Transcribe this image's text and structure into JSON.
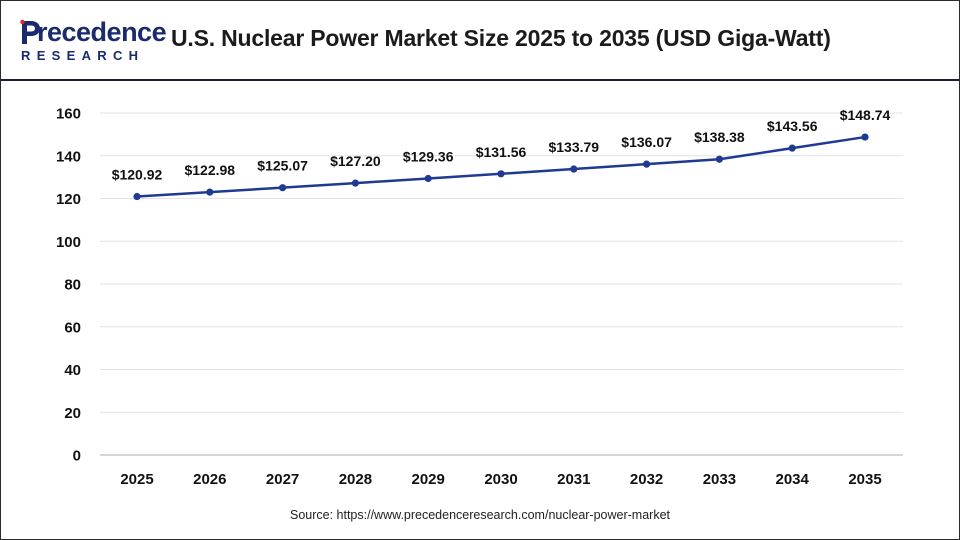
{
  "header": {
    "logo_top": "recedence",
    "logo_bottom": "RESEARCH",
    "title": "U.S. Nuclear Power Market Size 2025 to 2035 (USD Giga-Watt)"
  },
  "source": "Source: https://www.precedenceresearch.com/nuclear-power-market",
  "colors": {
    "brand": "#1a2b6d",
    "line": "#1f3a93",
    "grid": "#e3e3e3"
  },
  "chart_data": {
    "type": "line",
    "title": "U.S. Nuclear Power Market Size 2025 to 2035 (USD Giga-Watt)",
    "xlabel": "",
    "ylabel": "",
    "categories": [
      "2025",
      "2026",
      "2027",
      "2028",
      "2029",
      "2030",
      "2031",
      "2032",
      "2033",
      "2034",
      "2035"
    ],
    "series": [
      {
        "values": [
          120.92,
          122.98,
          125.07,
          127.2,
          129.36,
          131.56,
          133.79,
          136.07,
          138.38,
          143.56,
          148.74
        ]
      }
    ],
    "data_labels": [
      "$120.92",
      "$122.98",
      "$125.07",
      "$127.20",
      "$129.36",
      "$131.56",
      "$133.79",
      "$136.07",
      "$138.38",
      "$143.56",
      "$148.74"
    ],
    "yticks": [
      0,
      20,
      40,
      60,
      80,
      100,
      120,
      140,
      160
    ],
    "ylim": [
      0,
      160
    ],
    "grid": true,
    "legend": "none"
  }
}
